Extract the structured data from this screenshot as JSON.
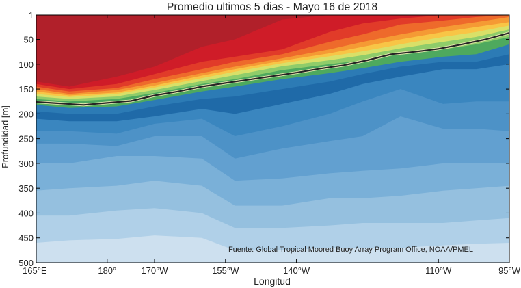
{
  "chart_data": {
    "type": "contour",
    "title": "Promedio ultimos 5 dias - Mayo 16 de 2018",
    "xlabel": "Longitud",
    "ylabel": "Profundidad [m]",
    "source_note": "Fuente: Global Tropical Moored Buoy Array Program Office, NOAA/PMEL",
    "x_ticks": [
      {
        "value": 165,
        "label": "165°E"
      },
      {
        "value": 180,
        "label": "180°"
      },
      {
        "value": 190,
        "label": "170°W"
      },
      {
        "value": 205,
        "label": "155°W"
      },
      {
        "value": 220,
        "label": "140°W"
      },
      {
        "value": 250,
        "label": "110°W"
      },
      {
        "value": 265,
        "label": "95°W"
      }
    ],
    "y_ticks": [
      {
        "value": 1,
        "label": "1"
      },
      {
        "value": 50,
        "label": "50"
      },
      {
        "value": 100,
        "label": "100"
      },
      {
        "value": 150,
        "label": "150"
      },
      {
        "value": 200,
        "label": "200"
      },
      {
        "value": 250,
        "label": "250"
      },
      {
        "value": 300,
        "label": "300"
      },
      {
        "value": 350,
        "label": "350"
      },
      {
        "value": 400,
        "label": "400"
      },
      {
        "value": 450,
        "label": "450"
      },
      {
        "value": 500,
        "label": "500"
      }
    ],
    "xlim": [
      165,
      265
    ],
    "ylim": [
      1,
      500
    ],
    "y_inverted": true,
    "stations_x": [
      165,
      172,
      182,
      190,
      200,
      207,
      217,
      227,
      234,
      242,
      251,
      258,
      265
    ],
    "bands": [
      {
        "color": "#b1202a",
        "depths": [
          0,
          0,
          0,
          0,
          0,
          0,
          0,
          0,
          0,
          0,
          0,
          0,
          0
        ]
      },
      {
        "color": "#cf1c28",
        "depths": [
          135,
          145,
          125,
          105,
          65,
          50,
          10,
          1,
          1,
          1,
          1,
          1,
          1
        ]
      },
      {
        "color": "#e13b29",
        "depths": [
          140,
          150,
          140,
          120,
          95,
          85,
          70,
          35,
          18,
          8,
          1,
          1,
          1
        ]
      },
      {
        "color": "#ee6a2b",
        "depths": [
          145,
          155,
          148,
          130,
          110,
          95,
          80,
          55,
          40,
          20,
          12,
          5,
          1
        ]
      },
      {
        "color": "#f59a34",
        "depths": [
          150,
          160,
          152,
          138,
          118,
          105,
          88,
          70,
          55,
          40,
          25,
          15,
          5
        ]
      },
      {
        "color": "#f8c546",
        "depths": [
          155,
          163,
          157,
          143,
          123,
          110,
          93,
          78,
          65,
          50,
          35,
          25,
          15
        ]
      },
      {
        "color": "#d9e068",
        "depths": [
          160,
          166,
          160,
          147,
          128,
          115,
          98,
          84,
          74,
          60,
          45,
          35,
          22
        ]
      },
      {
        "color": "#8fcc6a",
        "depths": [
          165,
          170,
          165,
          152,
          134,
          122,
          104,
          92,
          82,
          68,
          55,
          45,
          30
        ]
      },
      {
        "color": "#4ea95e",
        "depths": [
          170,
          175,
          170,
          158,
          140,
          130,
          112,
          100,
          92,
          80,
          70,
          60,
          45
        ]
      },
      {
        "color": "#2c7bb5",
        "depths": [
          182,
          188,
          185,
          172,
          155,
          145,
          130,
          118,
          108,
          95,
          85,
          80,
          60
        ]
      },
      {
        "color": "#1f6aa8",
        "depths": [
          195,
          200,
          200,
          185,
          170,
          165,
          150,
          135,
          120,
          105,
          95,
          95,
          80
        ]
      },
      {
        "color": "#3a86bf",
        "depths": [
          210,
          215,
          215,
          205,
          190,
          200,
          180,
          160,
          140,
          125,
          110,
          110,
          100
        ]
      },
      {
        "color": "#4d92c7",
        "depths": [
          235,
          235,
          240,
          220,
          210,
          245,
          225,
          200,
          175,
          150,
          180,
          175,
          175
        ]
      },
      {
        "color": "#62a0d0",
        "depths": [
          260,
          260,
          265,
          245,
          245,
          290,
          270,
          255,
          245,
          205,
          230,
          230,
          235
        ]
      },
      {
        "color": "#7ab0d8",
        "depths": [
          300,
          300,
          285,
          285,
          290,
          335,
          330,
          320,
          315,
          310,
          300,
          300,
          300
        ]
      },
      {
        "color": "#95c0df",
        "depths": [
          355,
          350,
          345,
          335,
          345,
          385,
          385,
          370,
          370,
          365,
          355,
          350,
          345
        ]
      },
      {
        "color": "#b0d0e8",
        "depths": [
          405,
          405,
          395,
          390,
          400,
          430,
          430,
          425,
          420,
          420,
          420,
          415,
          410
        ]
      },
      {
        "color": "#cde0ef",
        "depths": [
          460,
          455,
          452,
          445,
          450,
          475,
          475,
          470,
          470,
          470,
          465,
          462,
          460
        ]
      }
    ],
    "isotherm_20C": {
      "color": "#262626",
      "x": [
        165,
        170,
        175,
        180,
        185,
        190,
        195,
        200,
        205,
        210,
        215,
        220,
        225,
        230,
        235,
        240,
        245,
        250,
        255,
        260,
        265
      ],
      "depths": [
        176,
        179,
        182,
        178,
        174,
        163,
        155,
        145,
        138,
        131,
        124,
        117,
        109,
        102,
        92,
        80,
        75,
        69,
        60,
        50,
        37
      ]
    }
  }
}
